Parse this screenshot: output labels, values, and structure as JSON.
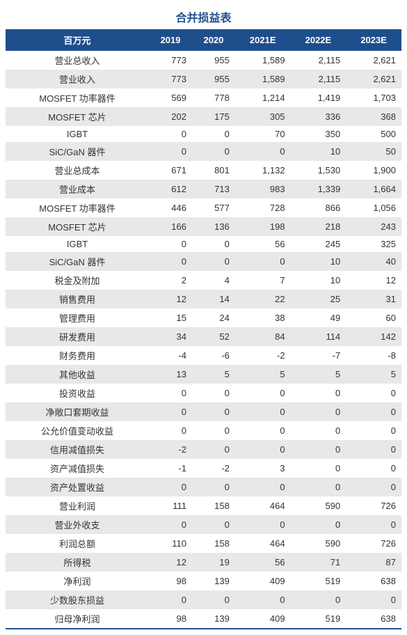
{
  "title": "合并损益表",
  "header_bg": "#1f4e8c",
  "header_fg": "#ffffff",
  "shade_bg": "#e8e8e8",
  "columns": [
    "百万元",
    "2019",
    "2020",
    "2021E",
    "2022E",
    "2023E"
  ],
  "rows": [
    {
      "label": "营业总收入",
      "values": [
        "773",
        "955",
        "1,589",
        "2,115",
        "2,621"
      ],
      "shaded": false
    },
    {
      "label": "营业收入",
      "values": [
        "773",
        "955",
        "1,589",
        "2,115",
        "2,621"
      ],
      "shaded": true
    },
    {
      "label": "MOSFET 功率器件",
      "values": [
        "569",
        "778",
        "1,214",
        "1,419",
        "1,703"
      ],
      "shaded": false
    },
    {
      "label": "MOSFET 芯片",
      "values": [
        "202",
        "175",
        "305",
        "336",
        "368"
      ],
      "shaded": true
    },
    {
      "label": "IGBT",
      "values": [
        "0",
        "0",
        "70",
        "350",
        "500"
      ],
      "shaded": false
    },
    {
      "label": "SiC/GaN 器件",
      "values": [
        "0",
        "0",
        "0",
        "10",
        "50"
      ],
      "shaded": true
    },
    {
      "label": "营业总成本",
      "values": [
        "671",
        "801",
        "1,132",
        "1,530",
        "1,900"
      ],
      "shaded": false
    },
    {
      "label": "营业成本",
      "values": [
        "612",
        "713",
        "983",
        "1,339",
        "1,664"
      ],
      "shaded": true
    },
    {
      "label": "MOSFET 功率器件",
      "values": [
        "446",
        "577",
        "728",
        "866",
        "1,056"
      ],
      "shaded": false
    },
    {
      "label": "MOSFET 芯片",
      "values": [
        "166",
        "136",
        "198",
        "218",
        "243"
      ],
      "shaded": true
    },
    {
      "label": "IGBT",
      "values": [
        "0",
        "0",
        "56",
        "245",
        "325"
      ],
      "shaded": false
    },
    {
      "label": "SiC/GaN 器件",
      "values": [
        "0",
        "0",
        "0",
        "10",
        "40"
      ],
      "shaded": true
    },
    {
      "label": "税金及附加",
      "values": [
        "2",
        "4",
        "7",
        "10",
        "12"
      ],
      "shaded": false
    },
    {
      "label": "销售费用",
      "values": [
        "12",
        "14",
        "22",
        "25",
        "31"
      ],
      "shaded": true
    },
    {
      "label": "管理费用",
      "values": [
        "15",
        "24",
        "38",
        "49",
        "60"
      ],
      "shaded": false
    },
    {
      "label": "研发费用",
      "values": [
        "34",
        "52",
        "84",
        "114",
        "142"
      ],
      "shaded": true
    },
    {
      "label": "财务费用",
      "values": [
        "-4",
        "-6",
        "-2",
        "-7",
        "-8"
      ],
      "shaded": false
    },
    {
      "label": "其他收益",
      "values": [
        "13",
        "5",
        "5",
        "5",
        "5"
      ],
      "shaded": true
    },
    {
      "label": "投资收益",
      "values": [
        "0",
        "0",
        "0",
        "0",
        "0"
      ],
      "shaded": false
    },
    {
      "label": "净敞口套期收益",
      "values": [
        "0",
        "0",
        "0",
        "0",
        "0"
      ],
      "shaded": true
    },
    {
      "label": "公允价值变动收益",
      "values": [
        "0",
        "0",
        "0",
        "0",
        "0"
      ],
      "shaded": false
    },
    {
      "label": "信用减值损失",
      "values": [
        "-2",
        "0",
        "0",
        "0",
        "0"
      ],
      "shaded": true
    },
    {
      "label": "资产减值损失",
      "values": [
        "-1",
        "-2",
        "3",
        "0",
        "0"
      ],
      "shaded": false
    },
    {
      "label": "资产处置收益",
      "values": [
        "0",
        "0",
        "0",
        "0",
        "0"
      ],
      "shaded": true
    },
    {
      "label": "营业利润",
      "values": [
        "111",
        "158",
        "464",
        "590",
        "726"
      ],
      "shaded": false
    },
    {
      "label": "营业外收支",
      "values": [
        "0",
        "0",
        "0",
        "0",
        "0"
      ],
      "shaded": true
    },
    {
      "label": "利润总额",
      "values": [
        "110",
        "158",
        "464",
        "590",
        "726"
      ],
      "shaded": false
    },
    {
      "label": "所得税",
      "values": [
        "12",
        "19",
        "56",
        "71",
        "87"
      ],
      "shaded": true
    },
    {
      "label": "净利润",
      "values": [
        "98",
        "139",
        "409",
        "519",
        "638"
      ],
      "shaded": false
    },
    {
      "label": "少数股东损益",
      "values": [
        "0",
        "0",
        "0",
        "0",
        "0"
      ],
      "shaded": true
    },
    {
      "label": "归母净利润",
      "values": [
        "98",
        "139",
        "409",
        "519",
        "638"
      ],
      "shaded": false
    }
  ]
}
